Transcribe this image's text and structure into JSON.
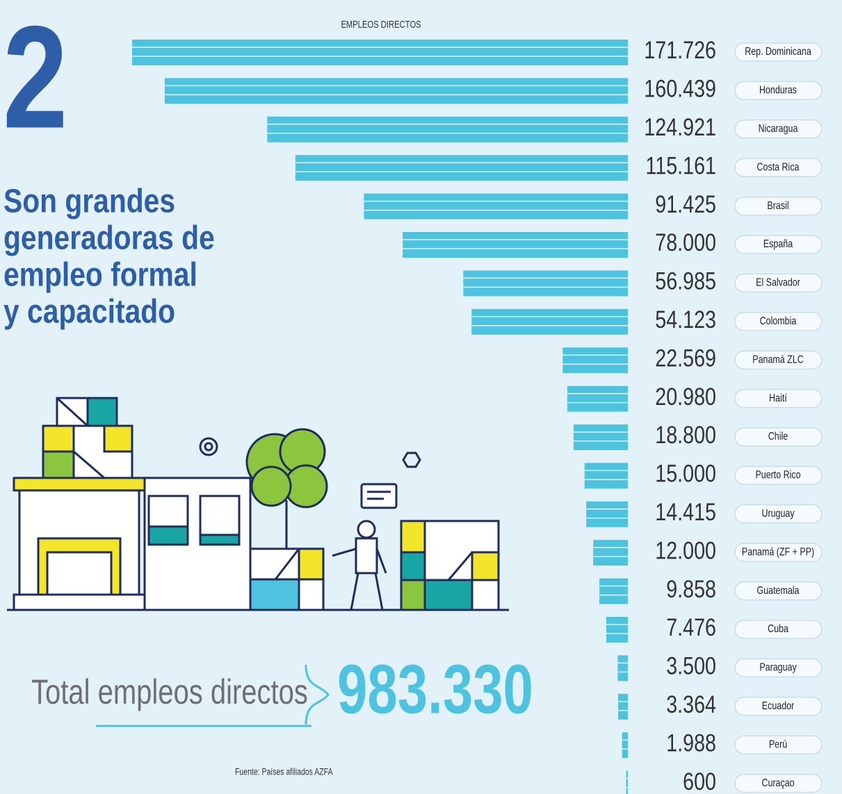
{
  "chart_data": {
    "type": "bar",
    "section_number": "2",
    "title": [
      "Son grandes",
      "generadoras de",
      "empleo formal",
      "y capacitado"
    ],
    "value_axis_label": "EMPLEOS DIRECTOS",
    "categories": [
      "Rep. Dominicana",
      "Honduras",
      "Nicaragua",
      "Costa Rica",
      "Brasil",
      "España",
      "El Salvador",
      "Colombia",
      "Panamá ZLC",
      "Haití",
      "Chile",
      "Puerto Rico",
      "Uruguay",
      "Panamá (ZF + PP)",
      "Guatemala",
      "Cuba",
      "Paraguay",
      "Ecuador",
      "Perú",
      "Curaçao"
    ],
    "values": [
      171726,
      160439,
      124921,
      115161,
      91425,
      78000,
      56985,
      54123,
      22569,
      20980,
      18800,
      15000,
      14415,
      12000,
      9858,
      7476,
      3500,
      3364,
      1988,
      600
    ],
    "value_labels": [
      "171.726",
      "160.439",
      "124.921",
      "115.161",
      "91.425",
      "78.000",
      "56.985",
      "54.123",
      "22.569",
      "20.980",
      "18.800",
      "15.000",
      "14.415",
      "12.000",
      "9.858",
      "7.476",
      "3.500",
      "3.364",
      "1.988",
      "600"
    ],
    "color": "#4ec3e0",
    "total_label": "Total empleos directos",
    "total": 983330,
    "total_value_label": "983.330",
    "source": "Fuente: Países afiliados AZFA"
  }
}
